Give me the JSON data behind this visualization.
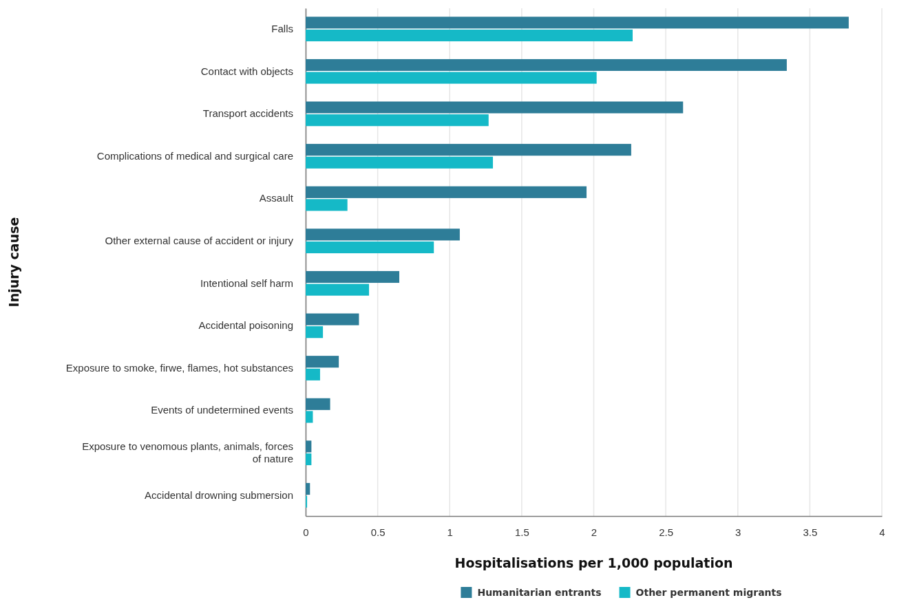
{
  "chart_data": {
    "type": "bar",
    "orientation": "horizontal",
    "xlabel": "Hospitalisations per 1,000 population",
    "ylabel": "Injury cause",
    "categories": [
      "Falls",
      "Contact with objects",
      "Transport accidents",
      "Complications of medical and surgical care",
      "Assault",
      "Other external cause of accident or injury",
      "Intentional self harm",
      "Accidental poisoning",
      "Exposure to smoke, firwe, flames, hot substances",
      "Events of undetermined events",
      "Exposure to venomous plants, animals, forces of nature",
      "Accidental drowning submersion"
    ],
    "series": [
      {
        "name": "Humanitarian entrants",
        "color": "#2e7d98",
        "values": [
          3.77,
          3.34,
          2.62,
          2.26,
          1.95,
          1.07,
          0.65,
          0.37,
          0.23,
          0.17,
          0.04,
          0.03
        ]
      },
      {
        "name": "Other permanent migrants",
        "color": "#15b9c7",
        "values": [
          2.27,
          2.02,
          1.27,
          1.3,
          0.29,
          0.89,
          0.44,
          0.12,
          0.1,
          0.05,
          0.04,
          0.01
        ]
      }
    ],
    "xlim": [
      0,
      4
    ],
    "xticks": [
      0,
      0.5,
      1,
      1.5,
      2,
      2.5,
      3,
      3.5,
      4
    ],
    "grid": "x",
    "legend": "bottom"
  }
}
